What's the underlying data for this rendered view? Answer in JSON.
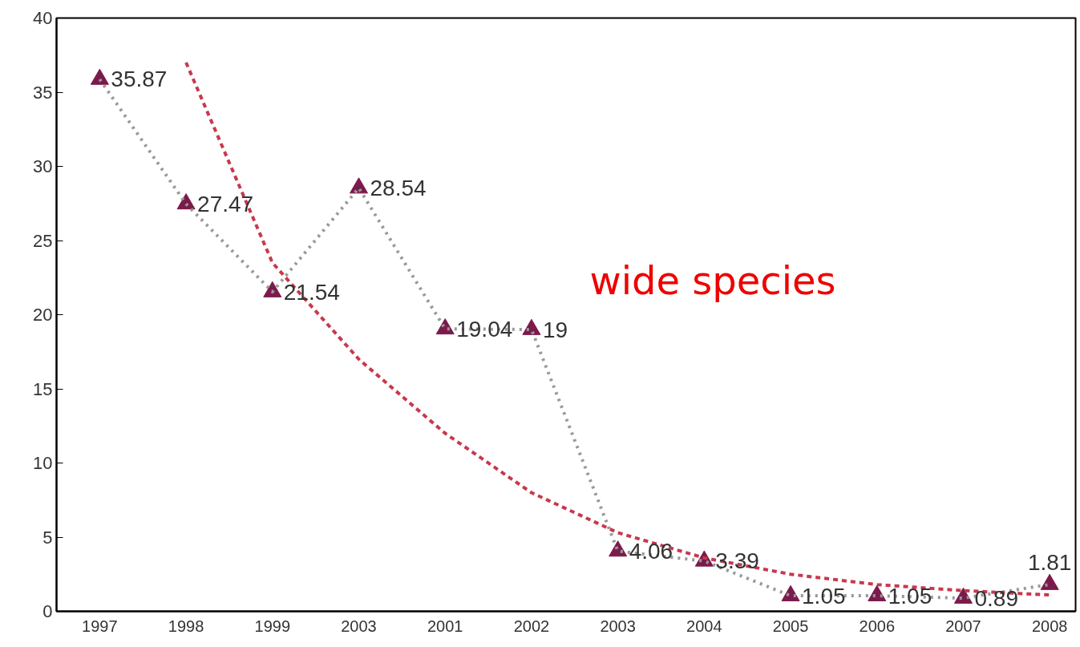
{
  "chart_data": {
    "type": "line",
    "categories": [
      "1997",
      "1998",
      "1999",
      "2003",
      "2001",
      "2002",
      "2003",
      "2004",
      "2005",
      "2006",
      "2007",
      "2008"
    ],
    "series": [
      {
        "color": "#7b1a4c",
        "values": [
          35.87,
          27.47,
          21.54,
          28.54,
          19.04,
          19,
          4.06,
          3.39,
          1.05,
          1.05,
          0.89,
          1.81
        ],
        "value_labels": [
          "35.87",
          "27.47",
          "21.54",
          "28.54",
          "19.04",
          "19",
          "4.06",
          "3.39",
          "1.05",
          "1.05",
          "0.89",
          "1.81"
        ],
        "marker": "triangle",
        "line_style": "dotted"
      },
      {
        "type": "line",
        "color": "#c8384e",
        "values": [
          null,
          37,
          23.5,
          17,
          12,
          8,
          5.3,
          3.6,
          2.5,
          1.8,
          1.4,
          1.1
        ],
        "marker": "none",
        "line_style": "dashed"
      }
    ],
    "ylim": [
      0,
      40
    ],
    "yticks": [
      0,
      5,
      10,
      15,
      20,
      25,
      30,
      35,
      40
    ],
    "grid": false,
    "annotations": [
      "wide species"
    ]
  }
}
